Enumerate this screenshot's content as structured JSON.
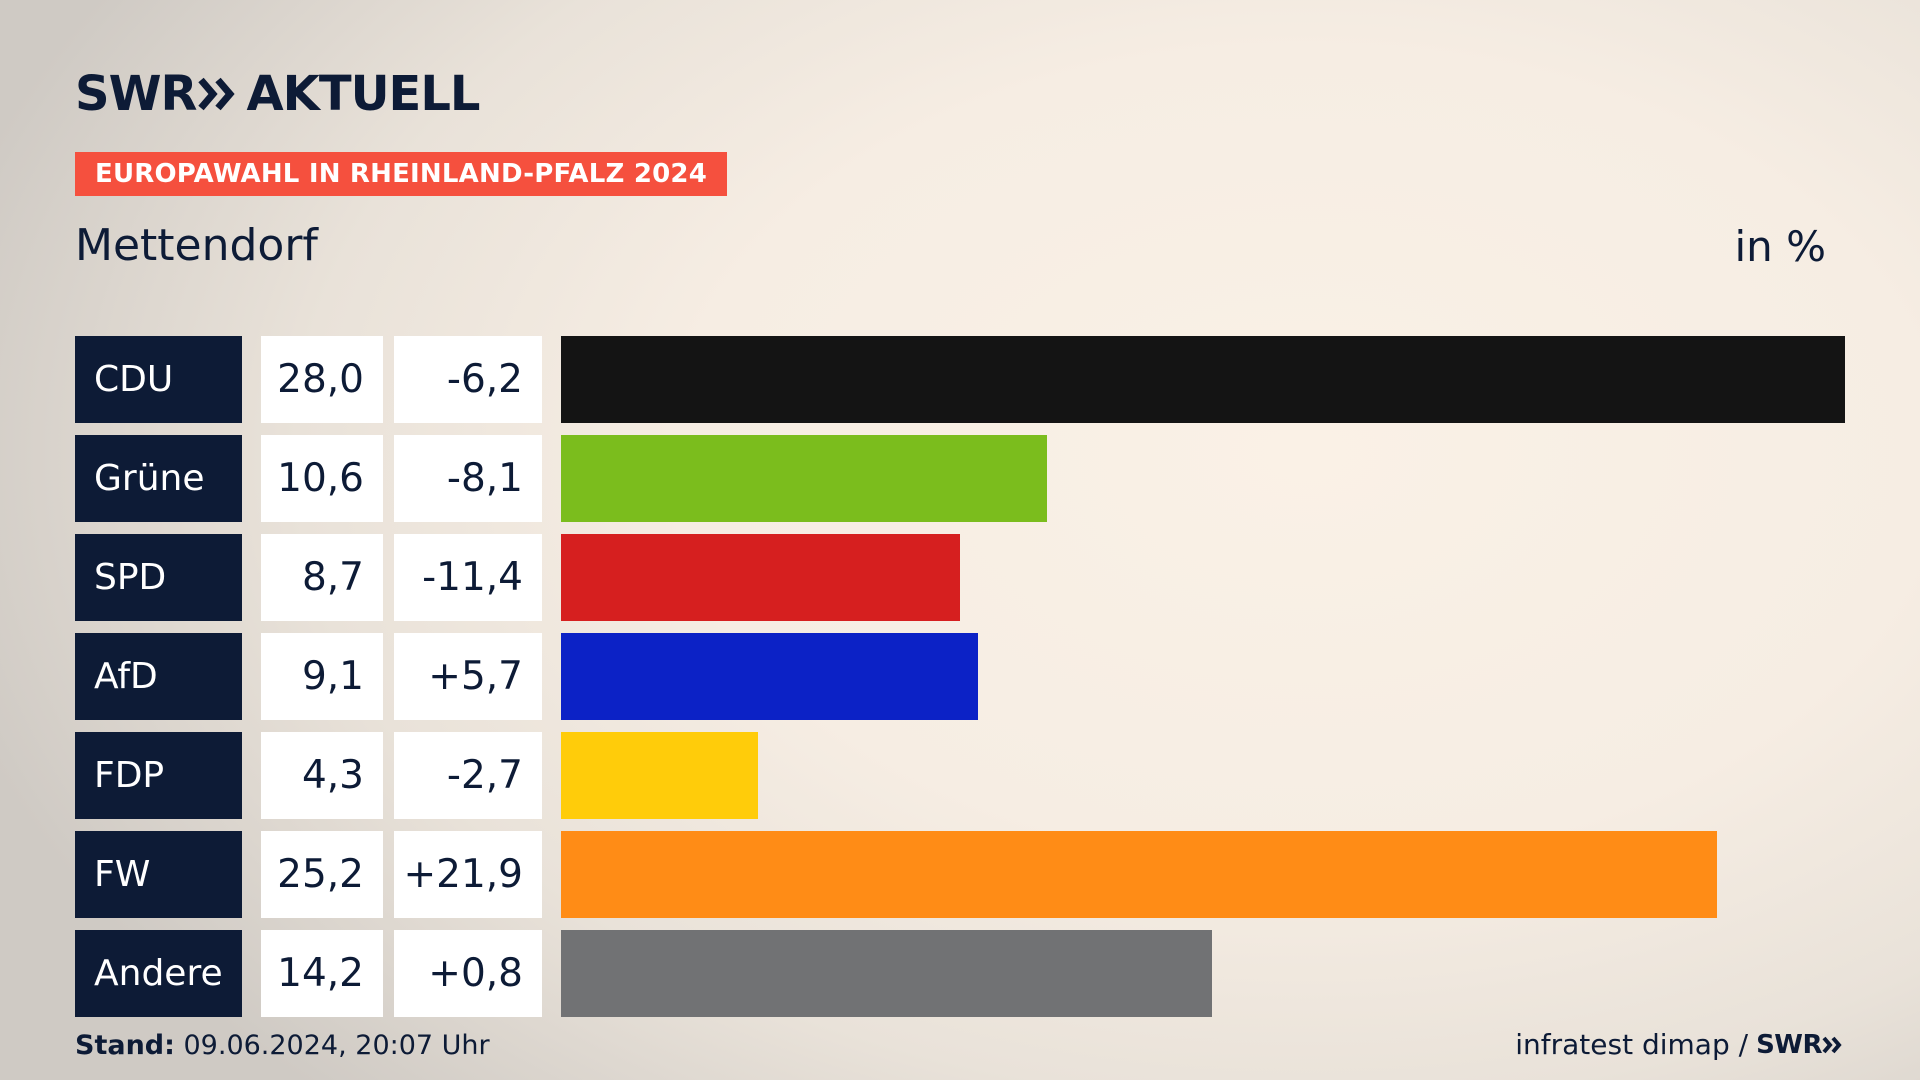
{
  "header": {
    "logo_text": "SWR",
    "logo_suffix": "AKTUELL",
    "banner": "EUROPAWAHL IN RHEINLAND-PFALZ 2024",
    "place": "Mettendorf",
    "unit": "in %"
  },
  "footer": {
    "stand_label": "Stand:",
    "stand_value": " 09.06.2024, 20:07 Uhr",
    "source": "infratest dimap /",
    "source_logo": "SWR"
  },
  "chart_data": {
    "type": "bar",
    "orientation": "horizontal",
    "xmax": 28.0,
    "categories": [
      "CDU",
      "Grüne",
      "SPD",
      "AfD",
      "FDP",
      "FW",
      "Andere"
    ],
    "values": [
      28.0,
      10.6,
      8.7,
      9.1,
      4.3,
      25.2,
      14.2
    ],
    "value_labels": [
      "28,0",
      "10,6",
      "8,7",
      "9,1",
      "4,3",
      "25,2",
      "14,2"
    ],
    "diff_labels": [
      "-6,2",
      "-8,1",
      "-11,4",
      "+5,7",
      "-2,7",
      "+21,9",
      "+0,8"
    ],
    "colors": [
      "#141414",
      "#7bbd1d",
      "#d61f1f",
      "#0c22c6",
      "#ffcc0a",
      "#ff8c16",
      "#717274"
    ]
  }
}
